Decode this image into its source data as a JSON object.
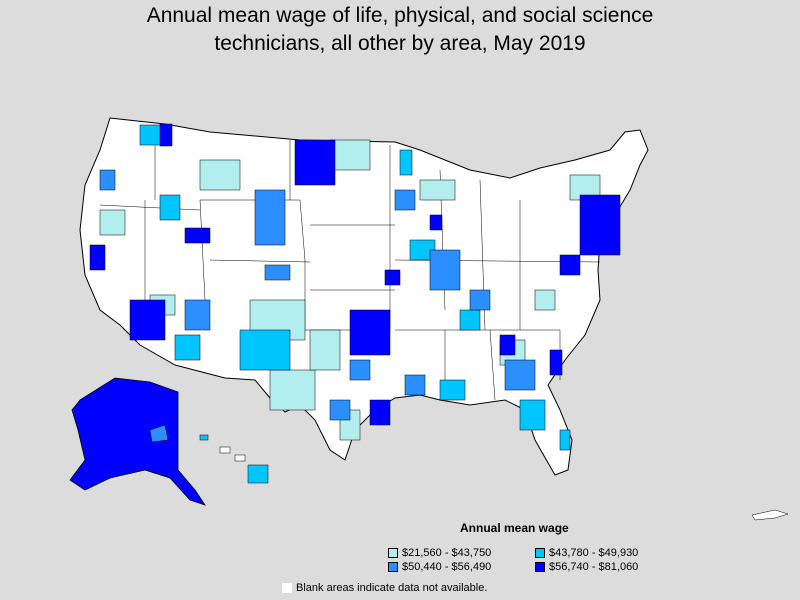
{
  "title": {
    "line1": "Annual mean wage of life, physical, and social science",
    "line2": "technicians, all other by area, May 2019"
  },
  "legend": {
    "title": "Annual mean wage",
    "items": [
      {
        "label": "$21,560 - $43,750",
        "color": "#b2eeee"
      },
      {
        "label": "$43,780 - $49,930",
        "color": "#00c5ff"
      },
      {
        "label": "$50,440 - $56,490",
        "color": "#2b8fff"
      },
      {
        "label": "$56,740 - $81,060",
        "color": "#0000ff"
      }
    ],
    "blank_note": "Blank areas indicate data not available.",
    "blank_color": "#ffffff"
  },
  "colors": {
    "background": "#dcdcdc",
    "state_fill": "#ffffff",
    "border": "#000000"
  }
}
